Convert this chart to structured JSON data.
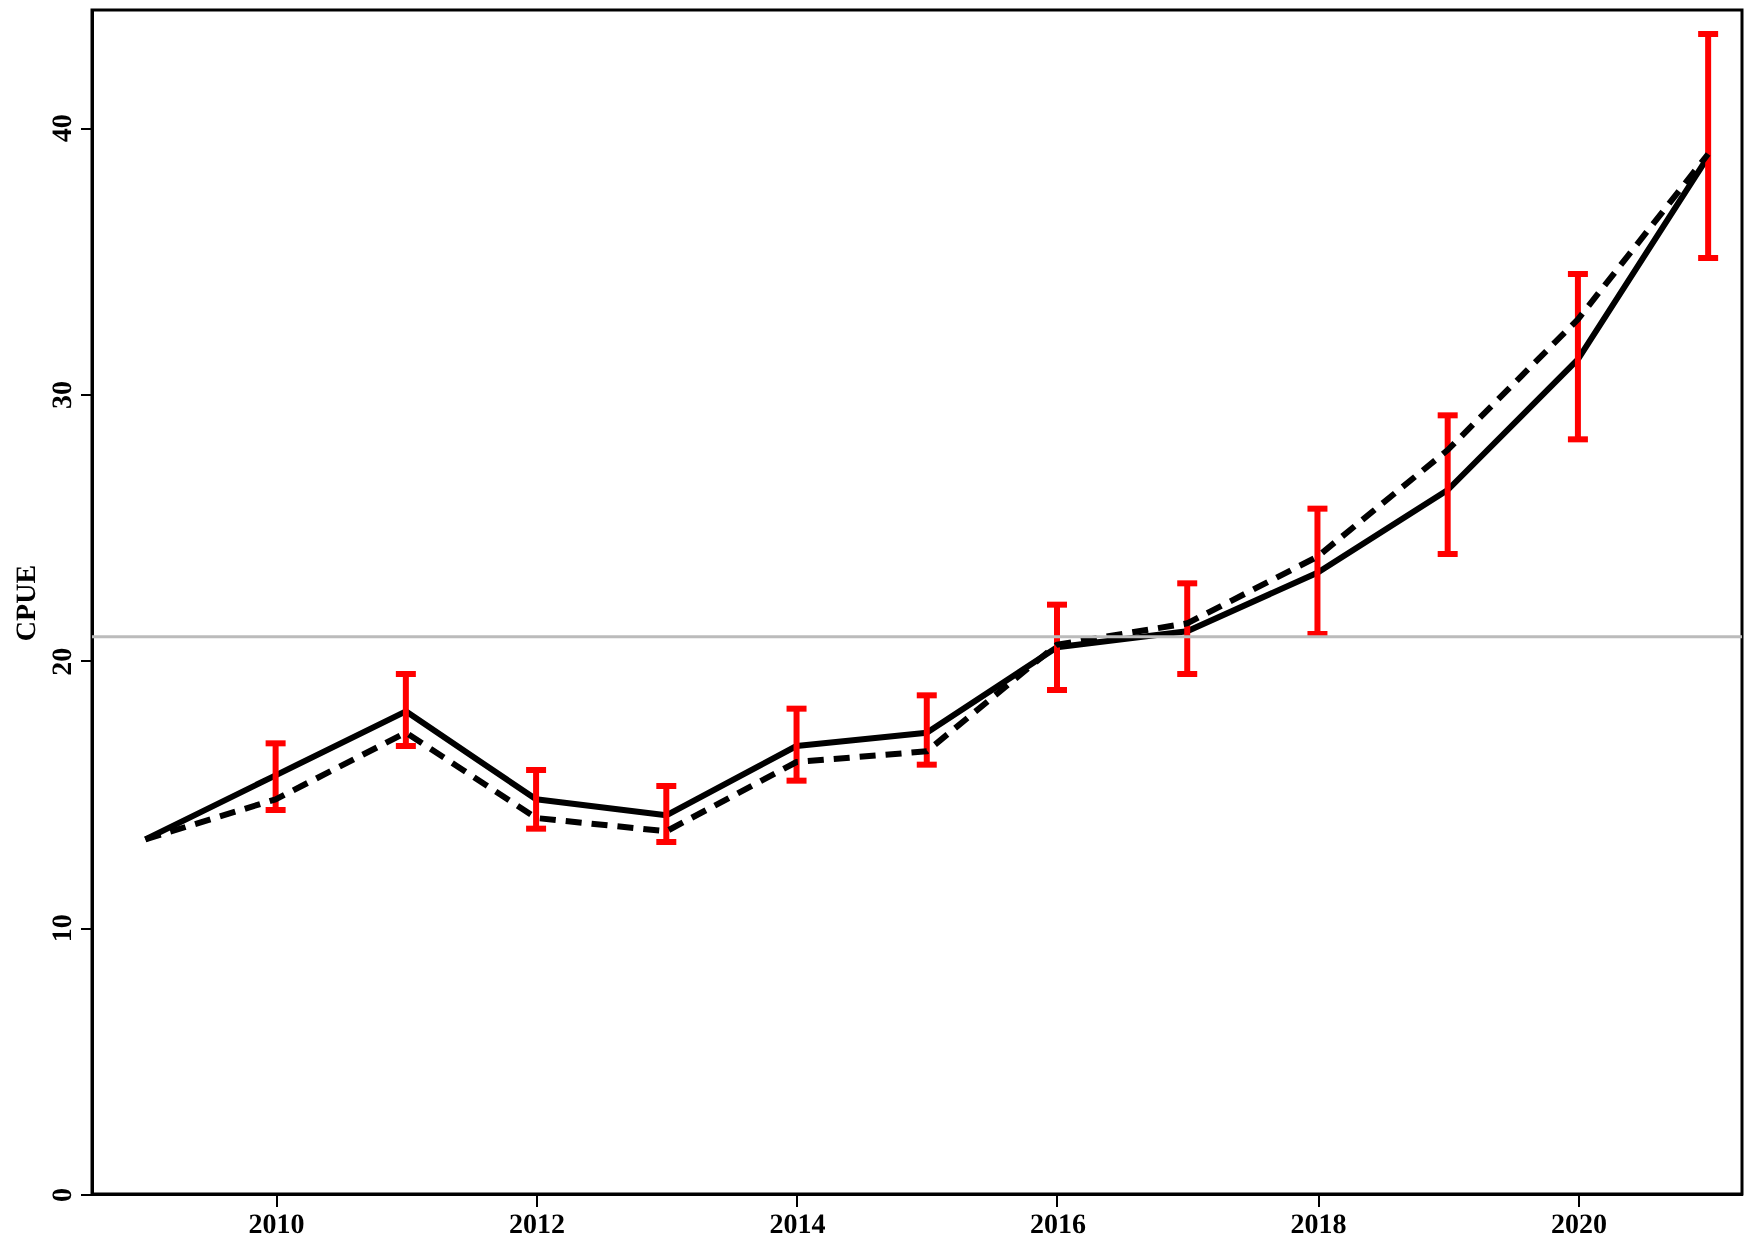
{
  "chart_data": {
    "type": "line",
    "ylabel": "CPUE",
    "x": [
      2009,
      2010,
      2011,
      2012,
      2013,
      2014,
      2015,
      2016,
      2017,
      2018,
      2019,
      2020,
      2021
    ],
    "series": [
      {
        "color": "#000000",
        "line_style": "solid",
        "values": [
          13.3,
          15.7,
          18.1,
          14.8,
          14.2,
          16.8,
          17.3,
          20.5,
          21.1,
          23.3,
          26.4,
          31.3,
          38.9
        ],
        "errors": [
          null,
          [
            14.4,
            16.9
          ],
          [
            16.8,
            19.5
          ],
          [
            13.7,
            15.9
          ],
          [
            13.2,
            15.3
          ],
          [
            15.5,
            18.2
          ],
          [
            16.1,
            18.7
          ],
          [
            18.9,
            22.1
          ],
          [
            19.5,
            22.9
          ],
          [
            21.0,
            25.7
          ],
          [
            24.0,
            29.2
          ],
          [
            28.3,
            34.5
          ],
          [
            35.1,
            43.5
          ]
        ]
      },
      {
        "color": "#000000",
        "line_style": "dashed",
        "values": [
          13.3,
          14.8,
          17.3,
          14.1,
          13.6,
          16.2,
          16.6,
          20.6,
          21.4,
          23.9,
          27.9,
          32.8,
          39.0
        ]
      }
    ],
    "xlim": [
      2008.59,
      2021.26
    ],
    "ylim": [
      0,
      44.4
    ],
    "xticks": [
      2010,
      2012,
      2014,
      2016,
      2018,
      2020
    ],
    "yticks": [
      0,
      10,
      20,
      30,
      40
    ],
    "ref_lines": [
      {
        "axis": "y",
        "value": 20.9,
        "color": "#bbbbbb",
        "line_style": "solid"
      }
    ],
    "grid": false,
    "marker": "none"
  }
}
